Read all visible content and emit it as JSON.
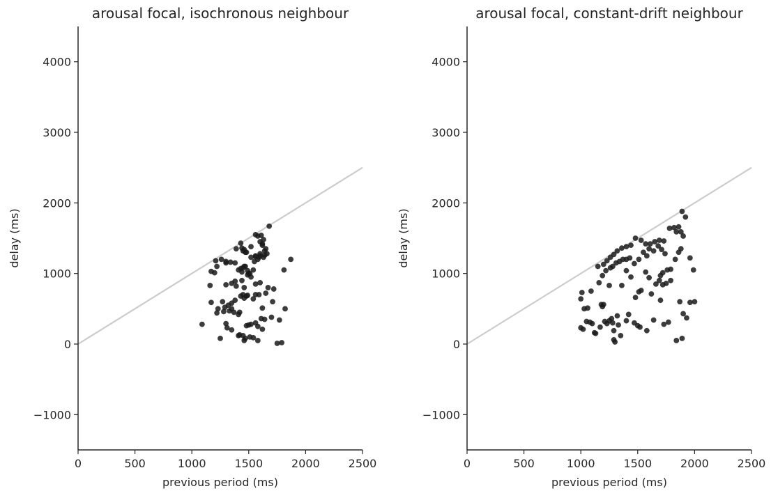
{
  "chart_data": [
    {
      "type": "scatter",
      "title": "arousal focal, isochronous neighbour",
      "xlabel": "previous period (ms)",
      "ylabel": "delay (ms)",
      "xlim": [
        0,
        2500
      ],
      "ylim": [
        -1500,
        4500
      ],
      "xticks": [
        0,
        500,
        1000,
        1500,
        2000,
        2500
      ],
      "yticks": [
        -1000,
        0,
        1000,
        2000,
        3000,
        4000
      ],
      "reference_line": {
        "x": [
          0,
          2500
        ],
        "y": [
          0,
          2500
        ],
        "color": "#cccccc"
      },
      "grid": false,
      "legend": "none",
      "marker_color": "#1a1a1a",
      "x": [
        1090,
        1250,
        1300,
        1310,
        1350,
        1370,
        1410,
        1420,
        1460,
        1480,
        1500,
        1520,
        1560,
        1580,
        1610,
        1640,
        1450,
        1470,
        1510,
        1540,
        1580,
        1620,
        1700,
        1750,
        1770,
        1790,
        1230,
        1290,
        1320,
        1350,
        1380,
        1420,
        1430,
        1450,
        1460,
        1480,
        1490,
        1540,
        1560,
        1590,
        1620,
        1670,
        1720,
        1170,
        1220,
        1280,
        1330,
        1350,
        1390,
        1410,
        1440,
        1460,
        1490,
        1500,
        1520,
        1560,
        1600,
        1650,
        1710,
        1820,
        1160,
        1200,
        1270,
        1300,
        1350,
        1380,
        1440,
        1460,
        1490,
        1510,
        1540,
        1580,
        1600,
        1630,
        1170,
        1220,
        1300,
        1340,
        1380,
        1410,
        1430,
        1450,
        1470,
        1520,
        1560,
        1600,
        1640,
        1660,
        1810,
        1870,
        1210,
        1260,
        1300,
        1390,
        1430,
        1450,
        1470,
        1520,
        1560,
        1580,
        1600,
        1620,
        1650,
        1680,
        1440,
        1460,
        1480,
        1560,
        1590,
        1620,
        1640,
        1610,
        1630,
        1550
      ],
      "y": [
        280,
        80,
        290,
        230,
        200,
        450,
        120,
        130,
        50,
        260,
        270,
        280,
        300,
        250,
        360,
        350,
        120,
        80,
        100,
        90,
        50,
        210,
        380,
        10,
        340,
        20,
        500,
        520,
        550,
        580,
        620,
        450,
        680,
        700,
        650,
        680,
        690,
        640,
        700,
        700,
        510,
        800,
        780,
        590,
        440,
        460,
        470,
        500,
        820,
        420,
        900,
        800,
        980,
        1000,
        950,
        850,
        870,
        720,
        600,
        500,
        830,
        1010,
        600,
        840,
        860,
        890,
        1020,
        1100,
        1040,
        1000,
        1050,
        1200,
        1250,
        1230,
        1030,
        1100,
        1150,
        1160,
        1150,
        1050,
        1070,
        1080,
        1100,
        1230,
        1250,
        1280,
        1260,
        1280,
        1050,
        1200,
        1180,
        1200,
        1170,
        1350,
        1430,
        1320,
        1300,
        1380,
        1550,
        1530,
        1450,
        1420,
        1350,
        1670,
        1360,
        1340,
        1300,
        1240,
        1230,
        1400,
        1320,
        1540,
        1480,
        1170
      ]
    },
    {
      "type": "scatter",
      "title": "arousal focal, constant-drift neighbour",
      "xlabel": "previous period (ms)",
      "ylabel": "delay (ms)",
      "xlim": [
        0,
        2500
      ],
      "ylim": [
        -1500,
        4500
      ],
      "xticks": [
        0,
        500,
        1000,
        1500,
        2000,
        2500
      ],
      "yticks": [
        -1000,
        0,
        1000,
        2000,
        3000,
        4000
      ],
      "reference_line": {
        "x": [
          0,
          2500
        ],
        "y": [
          0,
          2500
        ],
        "color": "#cccccc"
      },
      "grid": false,
      "legend": "none",
      "marker_color": "#1a1a1a",
      "x": [
        1000,
        1010,
        1030,
        1060,
        1080,
        1100,
        1130,
        1170,
        1190,
        1210,
        1230,
        1250,
        1280,
        1290,
        1300,
        1320,
        1350,
        1400,
        1420,
        1470,
        1500,
        1520,
        1580,
        1640,
        1730,
        1770,
        1840,
        1870,
        1890,
        1930,
        1960,
        2000,
        1000,
        1020,
        1050,
        1090,
        1120,
        1160,
        1180,
        1200,
        1250,
        1270,
        1290,
        1330,
        1360,
        1400,
        1440,
        1480,
        1510,
        1530,
        1570,
        1600,
        1620,
        1660,
        1690,
        1700,
        1720,
        1750,
        1790,
        1860,
        1900,
        1150,
        1190,
        1220,
        1260,
        1280,
        1310,
        1340,
        1370,
        1400,
        1430,
        1470,
        1510,
        1550,
        1580,
        1600,
        1640,
        1680,
        1710,
        1740,
        1760,
        1790,
        1830,
        1880,
        1200,
        1230,
        1260,
        1290,
        1320,
        1360,
        1400,
        1440,
        1480,
        1530,
        1570,
        1610,
        1650,
        1690,
        1730,
        1780,
        1820,
        1860,
        1890,
        1920,
        1960,
        1700,
        1720,
        1840,
        1880,
        1900,
        1990
      ],
      "y": [
        640,
        730,
        500,
        510,
        310,
        290,
        150,
        240,
        530,
        320,
        290,
        330,
        300,
        190,
        30,
        400,
        120,
        330,
        420,
        300,
        260,
        240,
        190,
        340,
        280,
        310,
        50,
        600,
        80,
        370,
        590,
        600,
        230,
        210,
        320,
        750,
        160,
        870,
        560,
        560,
        830,
        360,
        60,
        270,
        830,
        1040,
        950,
        660,
        740,
        760,
        1020,
        940,
        710,
        850,
        900,
        620,
        840,
        860,
        900,
        1300,
        430,
        1100,
        970,
        1040,
        1080,
        1100,
        1150,
        1170,
        1200,
        1200,
        1220,
        1140,
        1200,
        1300,
        1250,
        1350,
        1320,
        1390,
        1340,
        1280,
        1050,
        1060,
        1200,
        1350,
        1130,
        1180,
        1230,
        1270,
        1320,
        1360,
        1380,
        1400,
        1500,
        1470,
        1420,
        1420,
        1450,
        1470,
        1460,
        1640,
        1650,
        1660,
        1880,
        1800,
        1220,
        970,
        1010,
        1590,
        1590,
        1530,
        1050
      ]
    }
  ]
}
